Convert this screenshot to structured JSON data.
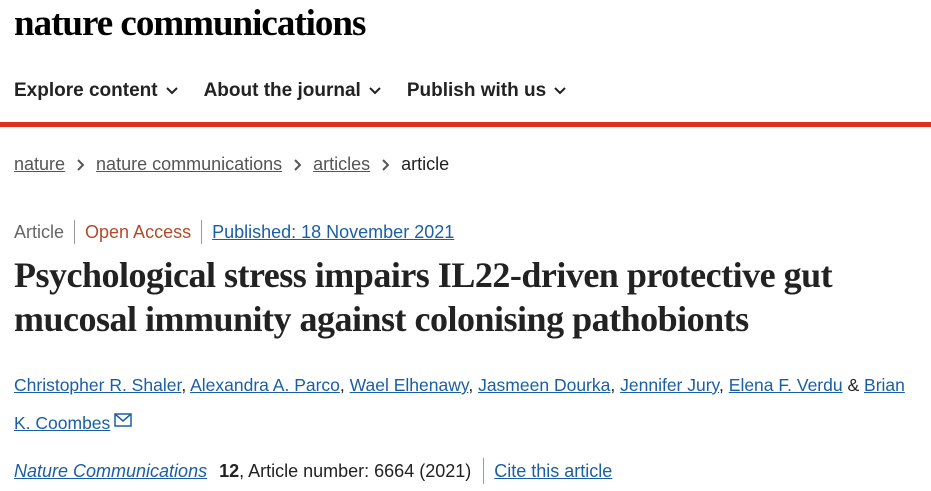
{
  "header": {
    "logo": "nature communications"
  },
  "nav": {
    "items": [
      "Explore content",
      "About the journal",
      "Publish with us"
    ]
  },
  "breadcrumb": {
    "items": [
      "nature",
      "nature communications",
      "articles",
      "article"
    ]
  },
  "article": {
    "type": "Article",
    "access": "Open Access",
    "published": "Published: 18 November 2021",
    "title": "Psychological stress impairs IL22-driven protective gut mucosal immunity against colonising pathobionts",
    "authors": [
      "Christopher R. Shaler",
      "Alexandra A. Parco",
      "Wael Elhenawy",
      "Jasmeen Dourka",
      "Jennifer Jury",
      "Elena F. Verdu",
      "Brian K. Coombes"
    ],
    "author_separator": ",",
    "author_conjunction": "&",
    "citation": {
      "journal": "Nature Communications",
      "volume": "12",
      "details": ", Article number: 6664 (2021)",
      "cite": "Cite this article"
    }
  }
}
